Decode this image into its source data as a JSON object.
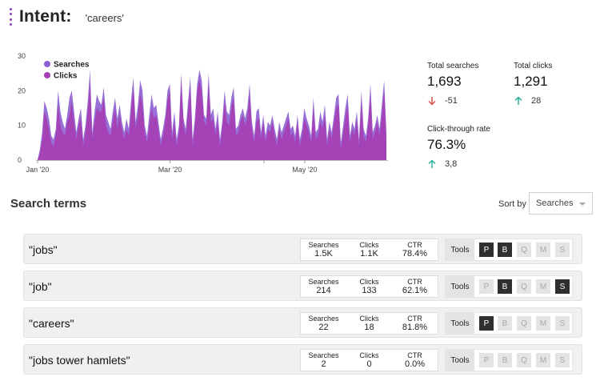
{
  "header": {
    "title": "Intent:",
    "value": "'careers'"
  },
  "stats": {
    "total_searches": {
      "label": "Total searches",
      "value": "1,693",
      "change": "-51",
      "direction": "down"
    },
    "total_clicks": {
      "label": "Total clicks",
      "value": "1,291",
      "change": "28",
      "direction": "up"
    },
    "ctr": {
      "label": "Click-through rate",
      "value": "76.3%",
      "change": "3,8",
      "direction": "up"
    }
  },
  "colors": {
    "searches": "#8d5fd3",
    "clicks": "#a43fb4",
    "up": "#2bb39a",
    "down": "#d9534f",
    "tool_on": "#2f2f2f",
    "tool_off": "#e4e4e4"
  },
  "search_terms": {
    "title": "Search terms",
    "sort_label": "Sort by",
    "sort_value": "Searches",
    "tools_label": "Tools",
    "col_labels": {
      "searches": "Searches",
      "clicks": "Clicks",
      "ctr": "CTR"
    },
    "tool_letters": [
      "P",
      "B",
      "Q",
      "M",
      "S"
    ],
    "rows": [
      {
        "term": "\"jobs\"",
        "searches": "1.5K",
        "clicks": "1.1K",
        "ctr": "78.4%",
        "tools_active": [
          true,
          true,
          false,
          false,
          false
        ]
      },
      {
        "term": "\"job\"",
        "searches": "214",
        "clicks": "133",
        "ctr": "62.1%",
        "tools_active": [
          false,
          true,
          false,
          false,
          true
        ]
      },
      {
        "term": "\"careers\"",
        "searches": "22",
        "clicks": "18",
        "ctr": "81.8%",
        "tools_active": [
          true,
          false,
          false,
          false,
          false
        ]
      },
      {
        "term": "\"jobs tower hamlets\"",
        "searches": "2",
        "clicks": "0",
        "ctr": "0.0%",
        "tools_active": [
          false,
          false,
          false,
          false,
          false
        ]
      }
    ]
  },
  "chart_data": {
    "type": "area",
    "x_start": "2020-01-01",
    "x_end": "2020-06-07",
    "xticks": [
      "2020-01-01",
      "2020-03-01",
      "2020-05-01"
    ],
    "xtick_labels": [
      "Jan '20",
      "Mar '20",
      "May '20"
    ],
    "yticks": [
      0,
      10,
      20,
      30
    ],
    "ylim": [
      0,
      30
    ],
    "legend_position": "top-left",
    "series": [
      {
        "name": "Searches",
        "color": "#8d5fd3",
        "values": [
          0,
          3,
          8,
          17,
          15,
          12,
          7,
          6,
          9,
          20,
          14,
          11,
          9,
          13,
          18,
          20,
          14,
          8,
          12,
          15,
          6,
          10,
          17,
          26,
          8,
          14,
          19,
          17,
          16,
          21,
          13,
          11,
          9,
          14,
          18,
          12,
          16,
          11,
          8,
          12,
          9,
          17,
          24,
          11,
          16,
          23,
          20,
          10,
          7,
          13,
          19,
          15,
          16,
          11,
          6,
          9,
          13,
          20,
          22,
          8,
          14,
          6,
          10,
          25,
          12,
          9,
          17,
          24,
          6,
          12,
          22,
          26,
          23,
          13,
          12,
          25,
          13,
          15,
          9,
          14,
          6,
          11,
          20,
          14,
          13,
          18,
          21,
          9,
          10,
          13,
          15,
          12,
          15,
          22,
          11,
          7,
          14,
          15,
          8,
          13,
          7,
          11,
          10,
          13,
          9,
          6,
          11,
          8,
          10,
          12,
          14,
          9,
          10,
          7,
          13,
          6,
          9,
          15,
          12,
          10,
          7,
          18,
          8,
          9,
          14,
          11,
          16,
          6,
          11,
          8,
          13,
          18,
          19,
          5,
          10,
          15,
          19,
          7,
          11,
          9,
          14,
          6,
          20,
          9,
          7,
          12,
          22,
          8,
          10,
          13,
          9,
          16,
          23,
          8
        ]
      },
      {
        "name": "Clicks",
        "color": "#a43fb4",
        "values": [
          0,
          2,
          6,
          14,
          12,
          9,
          5,
          4,
          7,
          16,
          10,
          8,
          7,
          11,
          13,
          17,
          11,
          6,
          10,
          12,
          4,
          8,
          14,
          22,
          6,
          11,
          15,
          14,
          14,
          18,
          10,
          8,
          7,
          11,
          15,
          9,
          13,
          9,
          6,
          9,
          7,
          14,
          21,
          9,
          13,
          19,
          16,
          8,
          5,
          10,
          15,
          12,
          13,
          9,
          4,
          7,
          11,
          17,
          20,
          6,
          11,
          4,
          8,
          23,
          10,
          7,
          14,
          21,
          4,
          10,
          20,
          23,
          20,
          11,
          10,
          22,
          11,
          12,
          7,
          11,
          4,
          9,
          17,
          11,
          10,
          15,
          18,
          7,
          8,
          11,
          13,
          10,
          12,
          19,
          9,
          5,
          11,
          12,
          6,
          11,
          5,
          9,
          8,
          11,
          7,
          4,
          9,
          6,
          8,
          10,
          12,
          7,
          8,
          5,
          11,
          4,
          7,
          12,
          10,
          8,
          5,
          15,
          6,
          7,
          11,
          9,
          13,
          4,
          9,
          6,
          11,
          15,
          16,
          3,
          8,
          12,
          16,
          5,
          9,
          7,
          12,
          4,
          17,
          7,
          5,
          10,
          19,
          6,
          8,
          11,
          7,
          13,
          20,
          6
        ]
      }
    ]
  }
}
